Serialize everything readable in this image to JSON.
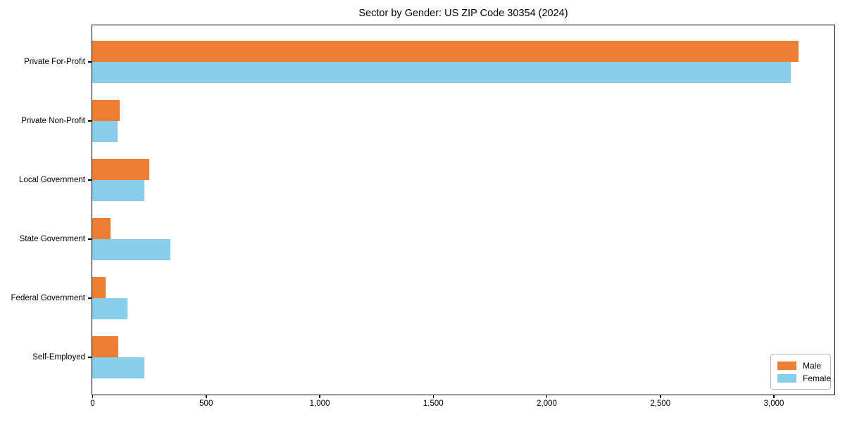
{
  "title": "Sector by Gender: US ZIP Code 30354 (2024)",
  "chart_data": {
    "type": "bar",
    "orientation": "horizontal",
    "title": "Sector by Gender: US ZIP Code 30354 (2024)",
    "xlabel": "",
    "ylabel": "",
    "categories": [
      "Private For-Profit",
      "Private Non-Profit",
      "Local Government",
      "State Government",
      "Federal Government",
      "Self-Employed"
    ],
    "series": [
      {
        "name": "Male",
        "color": "#ED7D31",
        "values": [
          3110,
          120,
          250,
          80,
          60,
          115
        ]
      },
      {
        "name": "Female",
        "color": "#87CEEB",
        "values": [
          3075,
          110,
          230,
          345,
          155,
          230
        ]
      }
    ],
    "xlim": [
      0,
      3265
    ],
    "xticks": {
      "values": [
        0,
        500,
        1000,
        1500,
        2000,
        2500,
        3000
      ],
      "labels": [
        "0",
        "500",
        "1,000",
        "1,500",
        "2,000",
        "2,500",
        "3,000"
      ]
    },
    "grid": false,
    "legend": {
      "position": "lower right",
      "entries": [
        "Male",
        "Female"
      ]
    },
    "colors": {
      "male": "#ED7D31",
      "female": "#87CEEB",
      "spine": "#000000",
      "background": "#ffffff"
    }
  }
}
